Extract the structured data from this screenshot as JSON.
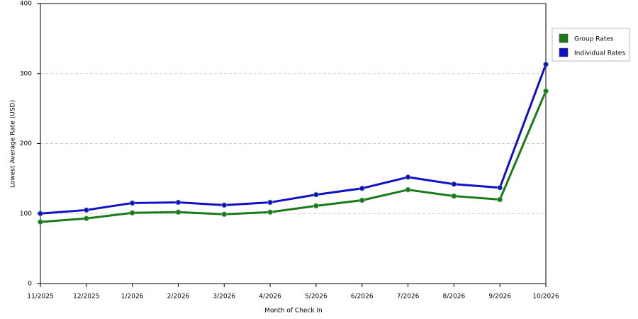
{
  "chart_data": {
    "type": "line",
    "x_label": "Month of Check In",
    "y_label": "Lowest Average Rate (USD)",
    "categories": [
      "11/2025",
      "12/2025",
      "1/2026",
      "2/2026",
      "3/2026",
      "4/2026",
      "5/2026",
      "6/2026",
      "7/2026",
      "8/2026",
      "9/2026",
      "10/2026"
    ],
    "series": [
      {
        "name": "Group Rates",
        "color": "#1a7a1a",
        "values": [
          88,
          93,
          101,
          102,
          99,
          102,
          111,
          119,
          134,
          125,
          120,
          275
        ]
      },
      {
        "name": "Individual Rates",
        "color": "#1010c8",
        "values": [
          100,
          105,
          115,
          116,
          112,
          116,
          127,
          136,
          152,
          142,
          137,
          313
        ]
      }
    ],
    "ylim": [
      0,
      400
    ],
    "yticks": [
      0,
      100,
      200,
      300,
      400
    ],
    "grid": true,
    "legend": "right"
  }
}
